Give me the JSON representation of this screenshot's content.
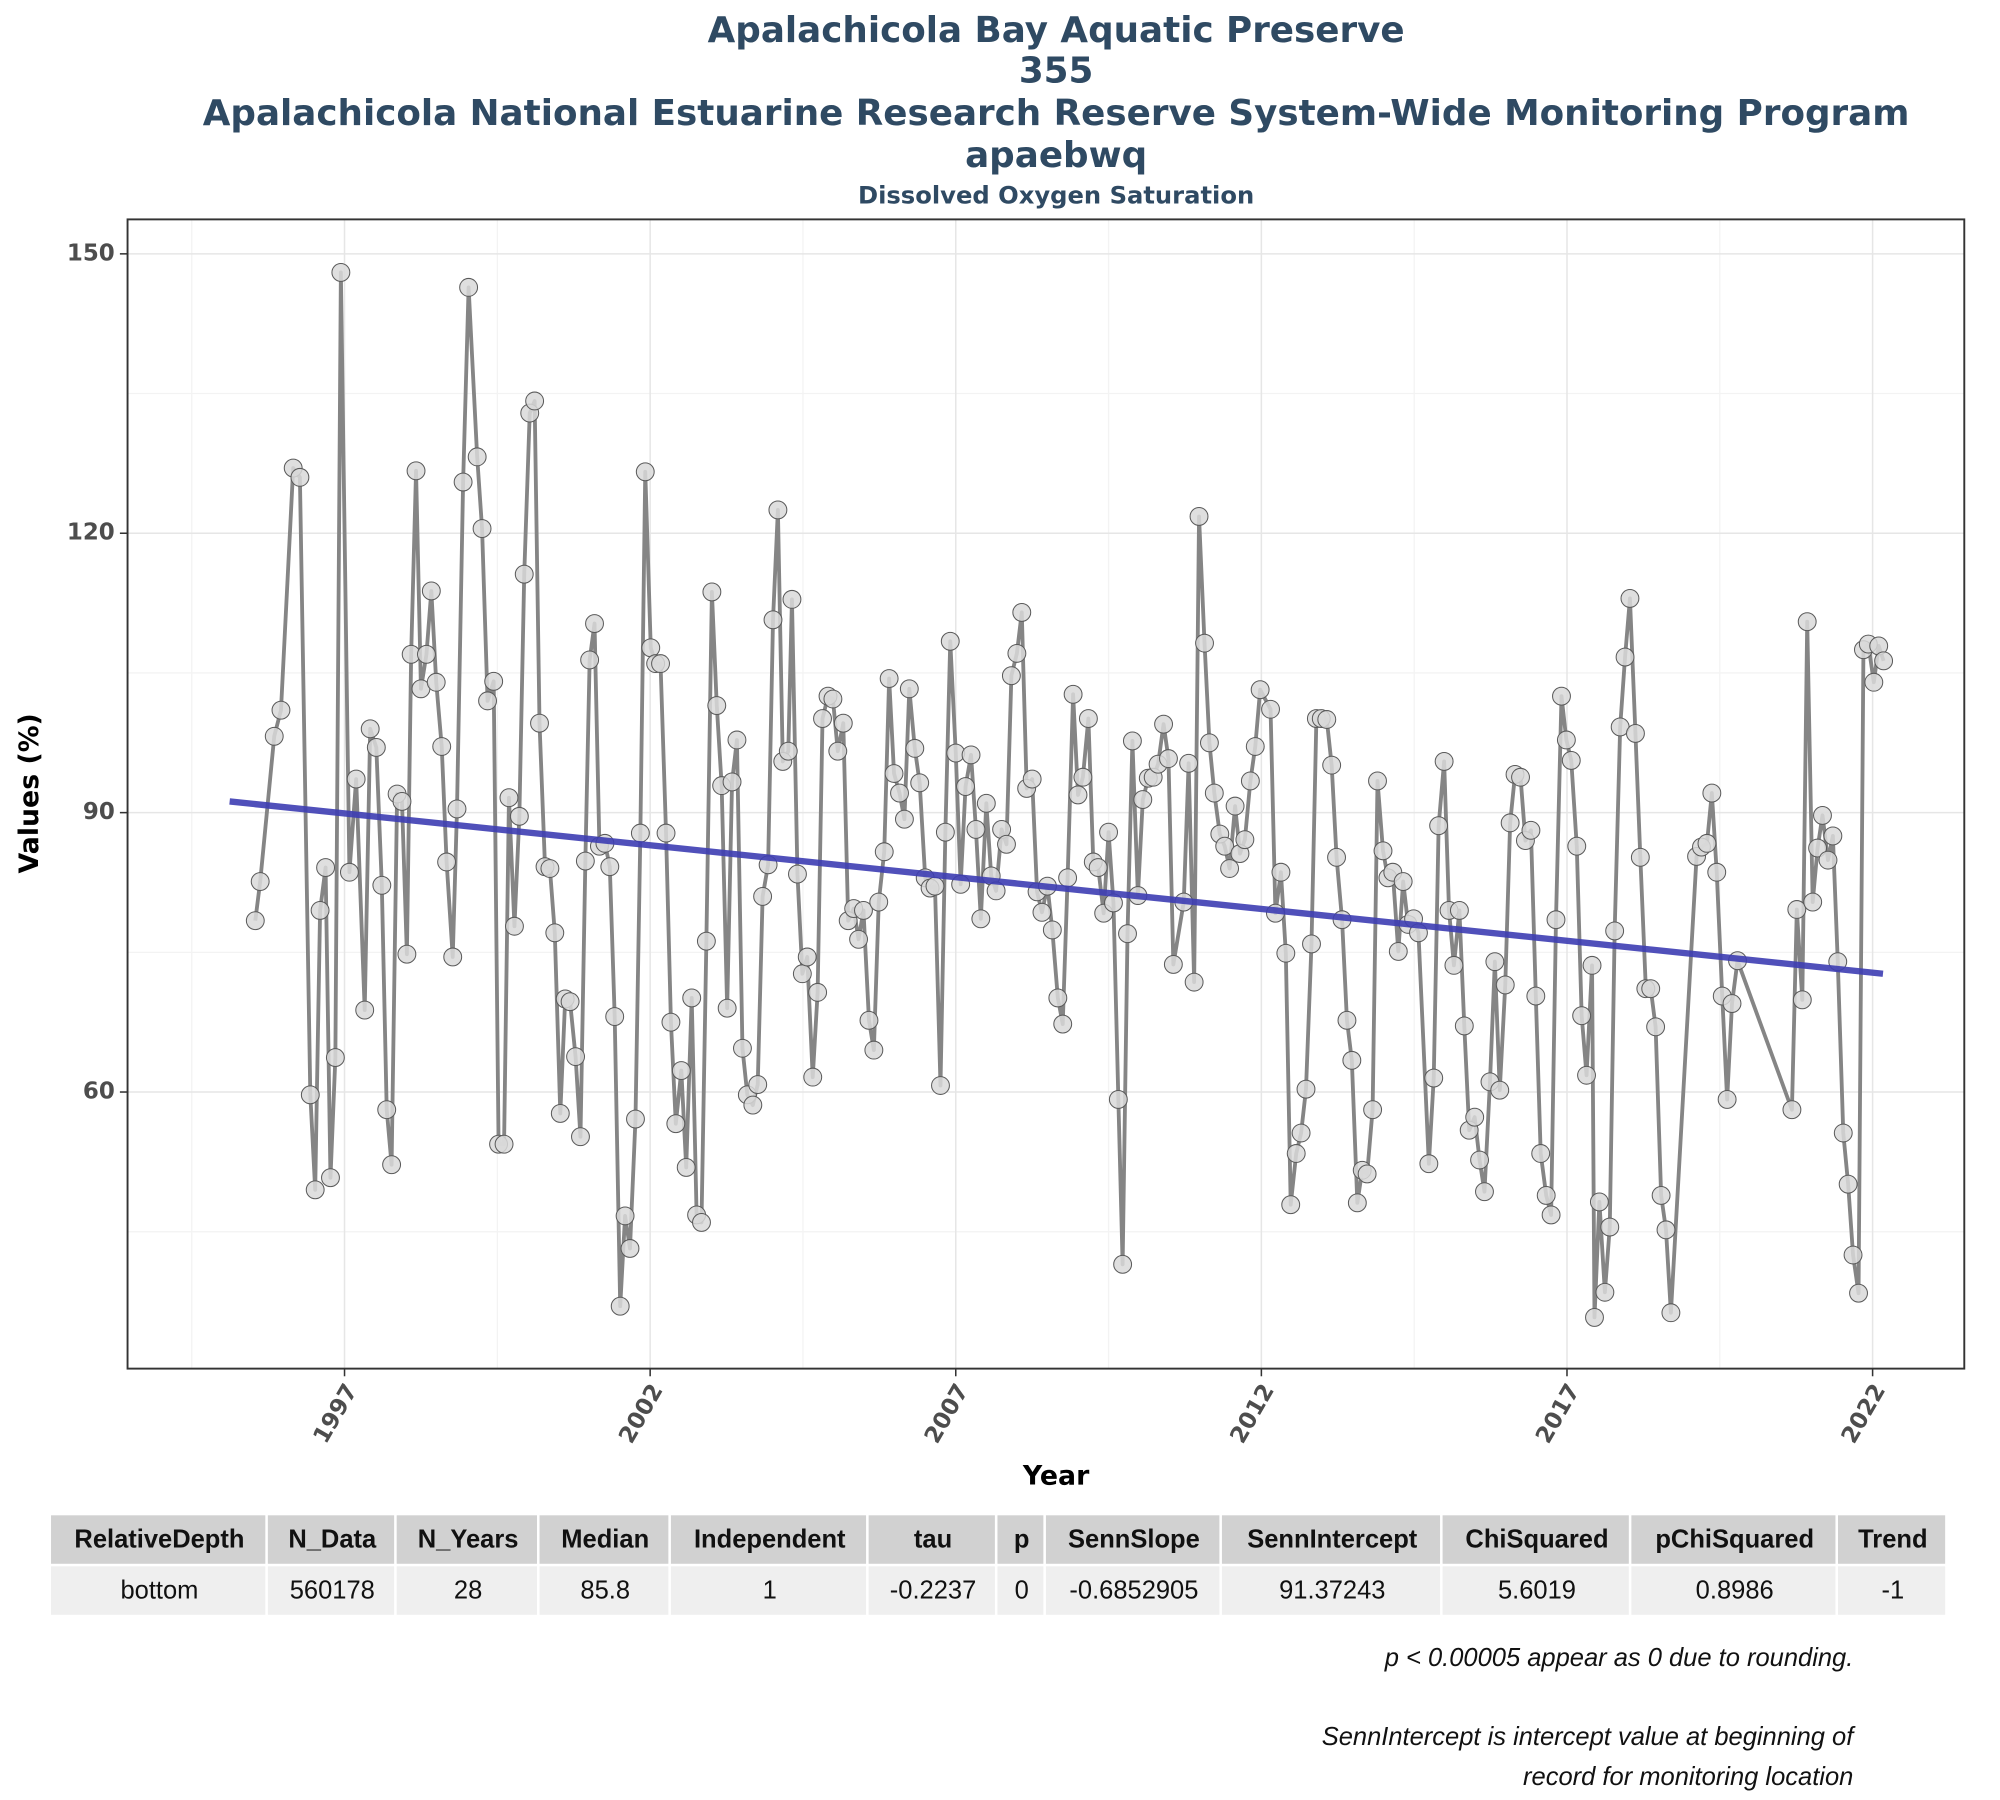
{
  "chart_data": {
    "type": "line",
    "title": [
      "Apalachicola Bay Aquatic Preserve",
      "355",
      "Apalachicola National Estuarine Research Reserve System-Wide Monitoring Program",
      "apaebwq"
    ],
    "subtitle": "Dissolved Oxygen Saturation",
    "x_label": "Year",
    "y_label": "Values (%)",
    "xlim": [
      1993.45,
      2023.5
    ],
    "ylim": [
      30.3,
      153.7
    ],
    "xticks": [
      1997,
      2002,
      2007,
      2012,
      2017,
      2022
    ],
    "yticks": [
      60,
      90,
      120,
      150
    ],
    "grid": true,
    "series": [
      {
        "color": "#858585",
        "x": [
          1995.54,
          1995.62,
          1995.85,
          1995.96,
          1996.16,
          1996.27,
          1996.44,
          1996.52,
          1996.6,
          1996.69,
          1996.77,
          1996.85,
          1996.94,
          1997.08,
          1997.19,
          1997.33,
          1997.42,
          1997.52,
          1997.61,
          1997.69,
          1997.77,
          1997.86,
          1997.94,
          1998.02,
          1998.09,
          1998.17,
          1998.25,
          1998.34,
          1998.42,
          1998.5,
          1998.59,
          1998.67,
          1998.77,
          1998.84,
          1998.94,
          1999.03,
          1999.17,
          1999.25,
          1999.34,
          1999.44,
          1999.52,
          1999.61,
          1999.69,
          1999.78,
          1999.86,
          1999.94,
          2000.03,
          2000.11,
          2000.19,
          2000.28,
          2000.36,
          2000.44,
          2000.53,
          2000.61,
          2000.69,
          2000.78,
          2000.86,
          2000.94,
          2001.01,
          2001.09,
          2001.17,
          2001.26,
          2001.34,
          2001.42,
          2001.51,
          2001.59,
          2001.67,
          2001.76,
          2001.84,
          2001.92,
          2002.01,
          2002.09,
          2002.17,
          2002.26,
          2002.34,
          2002.42,
          2002.51,
          2002.59,
          2002.68,
          2002.76,
          2002.84,
          2002.92,
          2003.01,
          2003.09,
          2003.17,
          2003.26,
          2003.34,
          2003.42,
          2003.51,
          2003.59,
          2003.68,
          2003.76,
          2003.84,
          2003.93,
          2004.01,
          2004.09,
          2004.17,
          2004.26,
          2004.32,
          2004.41,
          2004.49,
          2004.57,
          2004.66,
          2004.74,
          2004.82,
          2004.91,
          2004.99,
          2005.07,
          2005.16,
          2005.24,
          2005.33,
          2005.41,
          2005.49,
          2005.58,
          2005.66,
          2005.74,
          2005.83,
          2005.91,
          2005.99,
          2006.08,
          2006.16,
          2006.24,
          2006.33,
          2006.41,
          2006.5,
          2006.58,
          2006.66,
          2006.75,
          2006.83,
          2006.91,
          2007.0,
          2007.08,
          2007.16,
          2007.25,
          2007.33,
          2007.41,
          2007.5,
          2007.58,
          2007.66,
          2007.75,
          2007.83,
          2007.91,
          2008.0,
          2008.08,
          2008.16,
          2008.25,
          2008.33,
          2008.41,
          2008.5,
          2008.58,
          2008.67,
          2008.75,
          2008.83,
          2008.92,
          2009.0,
          2009.08,
          2009.17,
          2009.25,
          2009.33,
          2009.42,
          2009.5,
          2009.58,
          2009.66,
          2009.73,
          2009.81,
          2009.89,
          2009.98,
          2010.06,
          2010.15,
          2010.23,
          2010.31,
          2010.4,
          2010.48,
          2010.56,
          2010.73,
          2010.81,
          2010.9,
          2010.98,
          2011.07,
          2011.15,
          2011.23,
          2011.32,
          2011.4,
          2011.48,
          2011.57,
          2011.65,
          2011.73,
          2011.82,
          2011.9,
          2011.98,
          2012.15,
          2012.23,
          2012.32,
          2012.4,
          2012.48,
          2012.57,
          2012.65,
          2012.73,
          2012.82,
          2012.9,
          2012.98,
          2013.07,
          2013.15,
          2013.23,
          2013.32,
          2013.4,
          2013.48,
          2013.57,
          2013.65,
          2013.73,
          2013.82,
          2013.9,
          2013.99,
          2014.07,
          2014.15,
          2014.24,
          2014.32,
          2014.4,
          2014.49,
          2014.57,
          2014.74,
          2014.82,
          2014.9,
          2014.99,
          2015.07,
          2015.15,
          2015.24,
          2015.32,
          2015.4,
          2015.49,
          2015.57,
          2015.65,
          2015.74,
          2015.82,
          2015.9,
          2015.99,
          2016.07,
          2016.15,
          2016.24,
          2016.32,
          2016.41,
          2016.49,
          2016.57,
          2016.66,
          2016.74,
          2016.82,
          2016.91,
          2016.99,
          2017.07,
          2017.16,
          2017.24,
          2017.32,
          2017.41,
          2017.45,
          2017.53,
          2017.62,
          2017.7,
          2017.78,
          2017.87,
          2017.95,
          2018.03,
          2018.12,
          2018.2,
          2018.29,
          2018.37,
          2018.45,
          2018.54,
          2018.62,
          2018.7,
          2019.12,
          2019.2,
          2019.29,
          2019.37,
          2019.45,
          2019.54,
          2019.62,
          2019.7,
          2019.79,
          2020.68,
          2020.76,
          2020.85,
          2020.93,
          2021.02,
          2021.1,
          2021.18,
          2021.27,
          2021.35,
          2021.43,
          2021.52,
          2021.6,
          2021.68,
          2021.77,
          2021.85,
          2021.93,
          2022.02,
          2022.1,
          2022.18
        ],
        "values": [
          78.4,
          82.6,
          98.2,
          101,
          127,
          126,
          59.7,
          49.5,
          79.5,
          84.1,
          50.8,
          63.7,
          148,
          83.6,
          93.6,
          68.8,
          99,
          97,
          82.2,
          58.1,
          52.2,
          92,
          91.2,
          74.8,
          107,
          126.7,
          103.3,
          107,
          113.8,
          104,
          97.1,
          84.7,
          74.5,
          90.4,
          125.5,
          146.4,
          128.2,
          120.5,
          102,
          104.1,
          54.4,
          54.4,
          91.6,
          77.8,
          89.6,
          115.6,
          132.9,
          134.2,
          99.6,
          84.2,
          84,
          77.1,
          57.7,
          70,
          69.7,
          63.8,
          55.2,
          84.8,
          106.4,
          110.3,
          86.4,
          86.7,
          84.2,
          68.1,
          37,
          46.7,
          43.2,
          57.1,
          87.8,
          126.6,
          107.7,
          106,
          106,
          87.8,
          67.5,
          56.6,
          62.3,
          51.9,
          70.1,
          46.8,
          46,
          76.2,
          113.7,
          101.5,
          92.9,
          69,
          93.3,
          97.8,
          64.7,
          59.7,
          58.6,
          60.8,
          81,
          84.4,
          110.7,
          122.5,
          95.5,
          96.6,
          112.9,
          83.4,
          72.7,
          74.5,
          61.6,
          70.7,
          100.1,
          102.5,
          102.2,
          96.6,
          99.6,
          78.4,
          79.7,
          76.4,
          79.5,
          67.7,
          64.5,
          80.4,
          85.8,
          104.4,
          94.2,
          92.1,
          89.3,
          103.3,
          96.9,
          93.2,
          83,
          81.9,
          82.1,
          60.7,
          87.9,
          108.4,
          96.4,
          82.3,
          92.8,
          96.2,
          88.2,
          78.6,
          91,
          83.2,
          81.6,
          88.2,
          86.6,
          104.7,
          107.1,
          111.5,
          92.6,
          93.6,
          81.5,
          79.3,
          82.1,
          77.4,
          70.1,
          67.3,
          83,
          102.7,
          91.9,
          93.8,
          100.1,
          84.7,
          84.1,
          79.2,
          87.9,
          80.3,
          59.2,
          41.5,
          77,
          97.7,
          81.1,
          91.4,
          93.7,
          93.8,
          95.2,
          99.5,
          95.8,
          73.7,
          80.4,
          95.3,
          71.8,
          121.8,
          108.2,
          97.5,
          92.1,
          87.7,
          86.4,
          84,
          90.7,
          85.6,
          87.1,
          93.4,
          97.1,
          103.2,
          101.1,
          79.2,
          83.6,
          74.9,
          47.9,
          53.4,
          55.6,
          60.3,
          75.9,
          100.1,
          100.1,
          100,
          95.1,
          85.2,
          78.5,
          67.7,
          63.4,
          48.1,
          51.6,
          51.2,
          58.1,
          93.4,
          85.9,
          83,
          83.6,
          75.1,
          82.6,
          78,
          78.6,
          77.1,
          52.3,
          61.5,
          88.6,
          95.5,
          79.5,
          73.6,
          79.5,
          67.1,
          55.9,
          57.3,
          52.7,
          49.3,
          61.1,
          74,
          60.2,
          71.5,
          88.9,
          94.1,
          93.8,
          87,
          88.1,
          70.3,
          53.4,
          48.9,
          46.8,
          78.5,
          102.5,
          97.8,
          95.6,
          86.4,
          68.2,
          61.8,
          73.6,
          35.8,
          48.2,
          38.5,
          45.5,
          77.3,
          99.2,
          106.7,
          113,
          98.5,
          85.2,
          71.1,
          71.1,
          67,
          48.9,
          45.2,
          36.3,
          85.3,
          86.3,
          86.7,
          92.1,
          83.6,
          70.3,
          59.2,
          69.5,
          74.1,
          58.1,
          79.6,
          69.9,
          110.5,
          80.4,
          86.2,
          89.7,
          84.9,
          87.5,
          74,
          55.6,
          50.1,
          42.5,
          38.4,
          107.5,
          108.1,
          104,
          107.9,
          106.3
        ]
      }
    ],
    "trend": {
      "color": "#3d3db3",
      "x": [
        1995.12,
        2022.17
      ],
      "values": [
        91.2,
        72.7
      ]
    }
  },
  "table": {
    "columns": [
      "RelativeDepth",
      "N_Data",
      "N_Years",
      "Median",
      "Independent",
      "tau",
      "p",
      "SennSlope",
      "SennIntercept",
      "ChiSquared",
      "pChiSquared",
      "Trend"
    ],
    "rows": [
      [
        "bottom",
        560178,
        28,
        85.8,
        1,
        -0.2237,
        0,
        -0.6852905,
        91.37243,
        5.6019,
        0.8986,
        -1
      ]
    ]
  },
  "notes": [
    "p < 0.00005 appear as 0 due to rounding.",
    "SennIntercept is intercept value at beginning of",
    "record for monitoring location"
  ]
}
